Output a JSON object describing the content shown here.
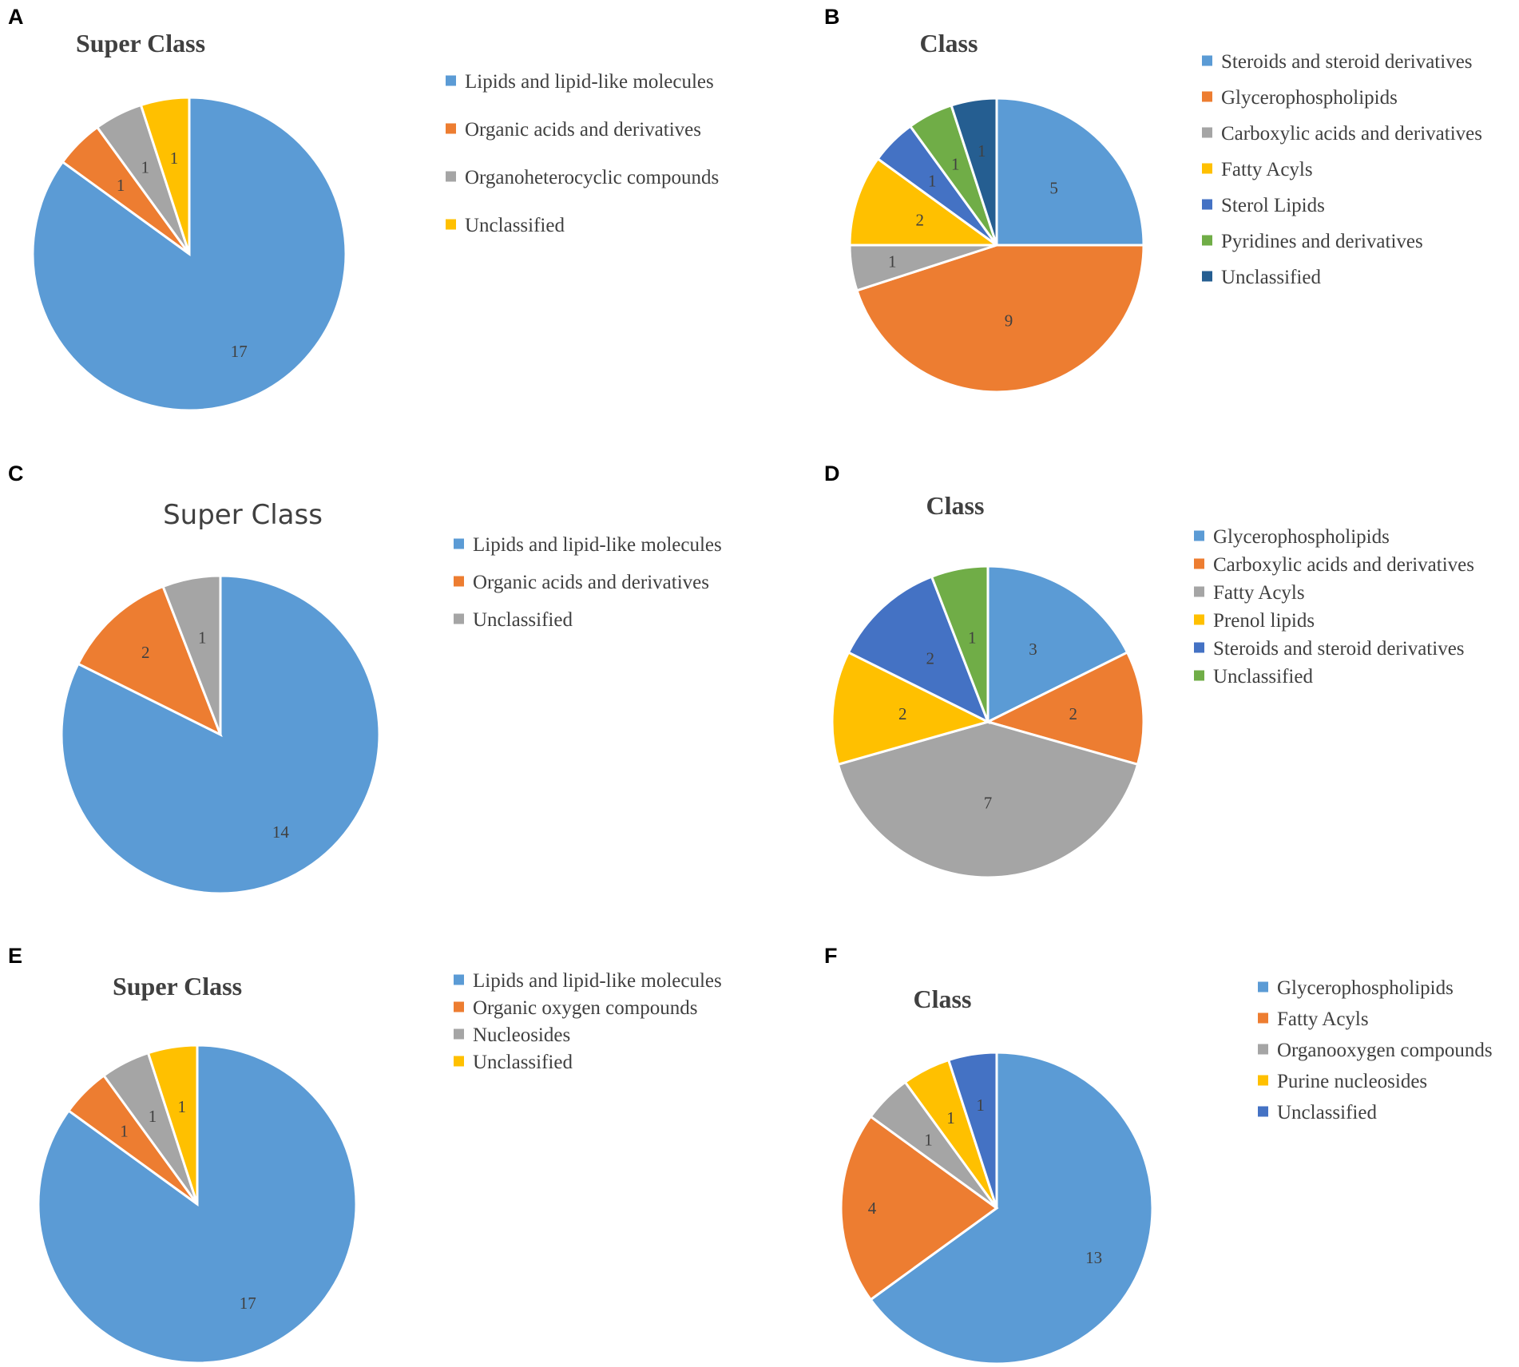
{
  "figure": {
    "panels": [
      "A",
      "B",
      "C",
      "D",
      "E",
      "F"
    ]
  },
  "chart_data": [
    {
      "panel": "A",
      "type": "pie",
      "title": "Super Class",
      "categories": [
        "Lipids and lipid-like molecules",
        "Organic acids and derivatives",
        "Organoheterocyclic compounds",
        "Unclassified"
      ],
      "values": [
        17,
        1,
        1,
        1
      ],
      "data_labels": [
        "17",
        "1",
        "1",
        "1"
      ],
      "colors": [
        "#5b9bd5",
        "#ed7d31",
        "#a5a5a5",
        "#ffc000"
      ],
      "legend_position": "right"
    },
    {
      "panel": "B",
      "type": "pie",
      "title": "Class",
      "categories": [
        "Steroids and steroid derivatives",
        "Glycerophospholipids",
        "Carboxylic acids and derivatives",
        "Fatty Acyls",
        "Sterol Lipids",
        "Pyridines and derivatives",
        "Unclassified"
      ],
      "values": [
        5,
        9,
        1,
        2,
        1,
        1,
        1
      ],
      "data_labels": [
        "5",
        "9",
        "1",
        "2",
        "1",
        "1",
        "1"
      ],
      "colors": [
        "#5b9bd5",
        "#ed7d31",
        "#a5a5a5",
        "#ffc000",
        "#4472c4",
        "#70ad47",
        "#255e91"
      ],
      "legend_position": "right"
    },
    {
      "panel": "C",
      "type": "pie",
      "title": "Super Class",
      "categories": [
        "Lipids and lipid-like molecules",
        "Organic acids and derivatives",
        "Unclassified"
      ],
      "values": [
        14,
        2,
        1
      ],
      "data_labels": [
        "14",
        "2",
        "1"
      ],
      "colors": [
        "#5b9bd5",
        "#ed7d31",
        "#a5a5a5"
      ],
      "legend_position": "right"
    },
    {
      "panel": "D",
      "type": "pie",
      "title": "Class",
      "categories": [
        "Glycerophospholipids",
        "Carboxylic acids and derivatives",
        "Fatty Acyls",
        "Prenol lipids",
        "Steroids and steroid derivatives",
        "Unclassified"
      ],
      "values": [
        3,
        2,
        7,
        2,
        2,
        1
      ],
      "data_labels": [
        "3",
        "2",
        "7",
        "2",
        "2",
        "1"
      ],
      "colors": [
        "#5b9bd5",
        "#ed7d31",
        "#a5a5a5",
        "#ffc000",
        "#4472c4",
        "#70ad47"
      ],
      "legend_position": "right"
    },
    {
      "panel": "E",
      "type": "pie",
      "title": "Super Class",
      "categories": [
        "Lipids and lipid-like molecules",
        "Organic oxygen compounds",
        "Nucleosides",
        "Unclassified"
      ],
      "values": [
        17,
        1,
        1,
        1
      ],
      "data_labels": [
        "17",
        "1",
        "1",
        "1"
      ],
      "colors": [
        "#5b9bd5",
        "#ed7d31",
        "#a5a5a5",
        "#ffc000"
      ],
      "legend_position": "right"
    },
    {
      "panel": "F",
      "type": "pie",
      "title": "Class",
      "categories": [
        "Glycerophospholipids",
        "Fatty Acyls",
        "Organooxygen compounds",
        "Purine nucleosides",
        "Unclassified"
      ],
      "values": [
        13,
        4,
        1,
        1,
        1
      ],
      "data_labels": [
        "13",
        "4",
        "1",
        "1",
        "1"
      ],
      "colors": [
        "#5b9bd5",
        "#ed7d31",
        "#a5a5a5",
        "#ffc000",
        "#4472c4"
      ],
      "legend_position": "right"
    }
  ]
}
